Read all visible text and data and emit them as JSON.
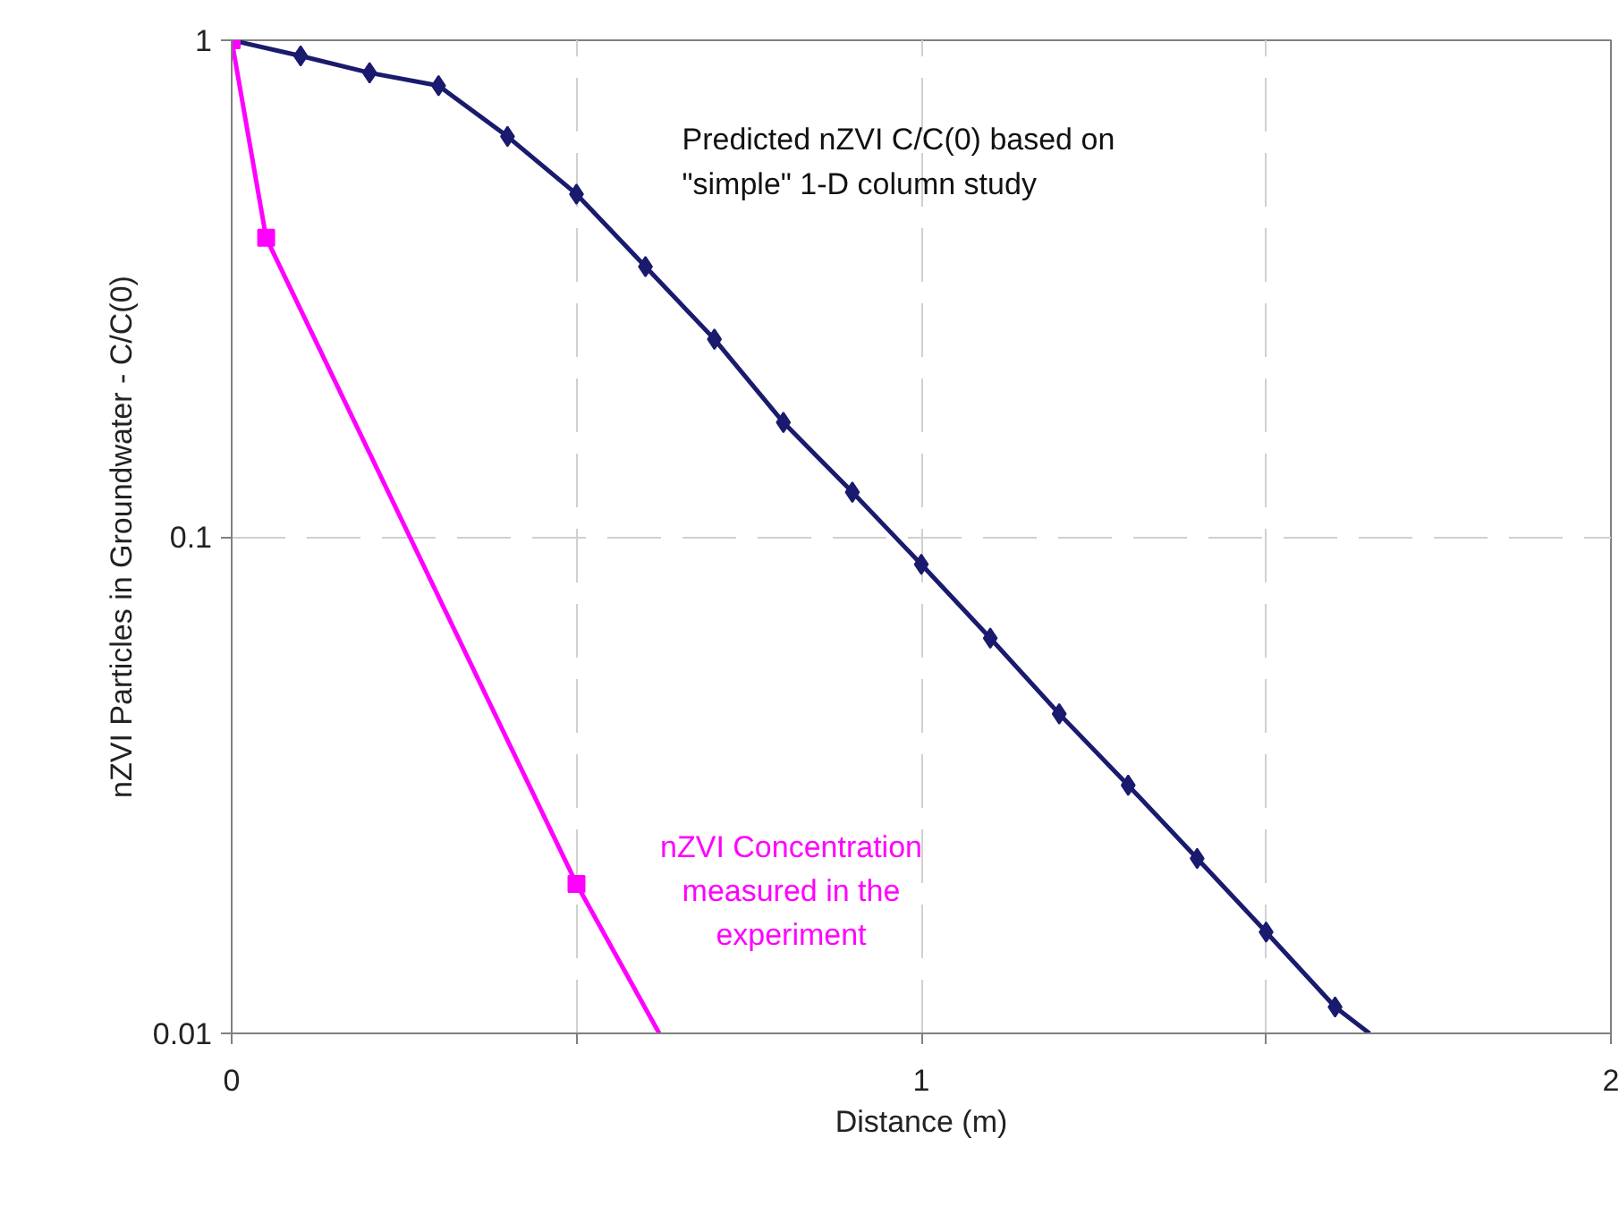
{
  "chart_data": {
    "type": "line",
    "xlabel": "Distance (m)",
    "ylabel": "nZVI Particles in Groundwater - C/C(0)",
    "log": "y",
    "grid": true,
    "xlim": [
      0,
      2
    ],
    "xticks": [
      0,
      {
        "value": 0.5,
        "label": null
      },
      1,
      {
        "value": 1.5,
        "label": null
      },
      2
    ],
    "ylim": [
      0.01,
      1
    ],
    "yticks": [
      0.01,
      0.1,
      1
    ],
    "series": [
      {
        "name": "Predicted nZVI C/C(0) based on\n\"simple\" 1-D column study",
        "color": "#1a1a6e",
        "marker": "diamond",
        "x": [
          0,
          0.1,
          0.2,
          0.3,
          0.4,
          0.5,
          0.6,
          0.7,
          0.8,
          0.9,
          1.0,
          1.1,
          1.2,
          1.3,
          1.4,
          1.5,
          1.6,
          1.65
        ],
        "values": [
          1,
          0.93,
          0.86,
          0.81,
          0.64,
          0.49,
          0.35,
          0.25,
          0.17,
          0.123,
          0.088,
          0.0625,
          0.044,
          0.0316,
          0.0225,
          0.016,
          0.0113,
          0.01
        ]
      },
      {
        "name": "nZVI Concentration\nmeasured in the\nexperiment",
        "color": "#ff00ff",
        "marker": "square",
        "x": [
          0,
          0.05,
          0.5,
          0.62
        ],
        "values": [
          1,
          0.4,
          0.02,
          0.01
        ]
      }
    ]
  }
}
